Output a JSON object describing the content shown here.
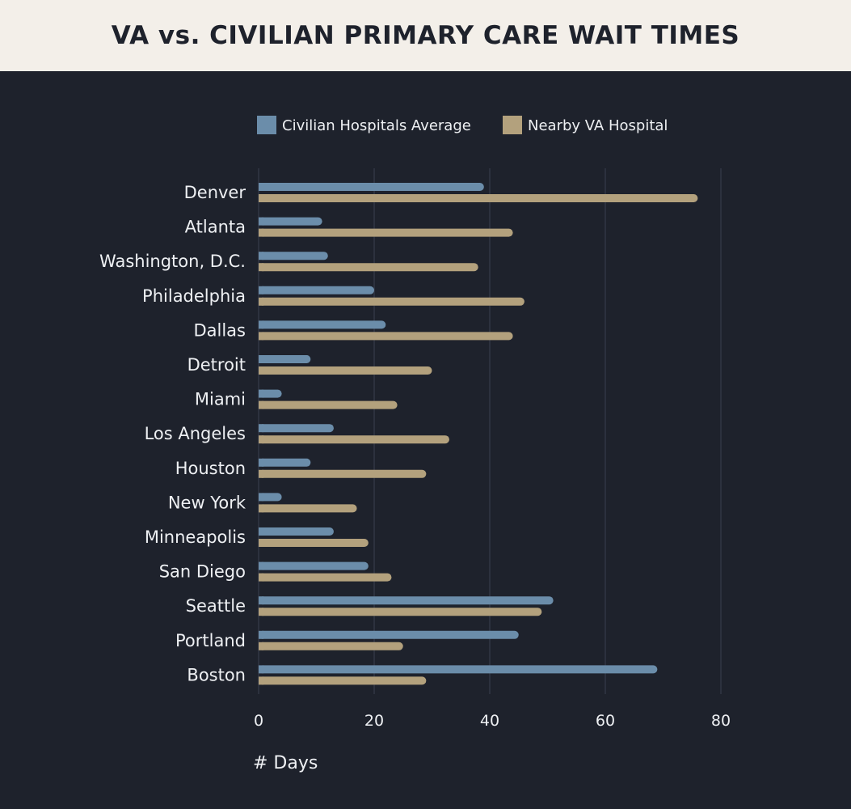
{
  "title": "VA vs. CIVILIAN PRIMARY CARE WAIT TIMES",
  "colors": {
    "background": "#1e222c",
    "header": "#f3efe9",
    "civilian": "#6b8daa",
    "va": "#b3a17d",
    "text": "#eef0f3",
    "grid": "#394050"
  },
  "chart_data": {
    "type": "bar",
    "orientation": "horizontal",
    "title": "VA vs. CIVILIAN PRIMARY CARE WAIT TIMES",
    "xlabel": "# Days",
    "ylabel": "",
    "xlim": [
      0,
      80
    ],
    "xticks": [
      0,
      20,
      40,
      60,
      80
    ],
    "grid": true,
    "legend_position": "top",
    "categories": [
      "Denver",
      "Atlanta",
      "Washington, D.C.",
      "Philadelphia",
      "Dallas",
      "Detroit",
      "Miami",
      "Los Angeles",
      "Houston",
      "New York",
      "Minneapolis",
      "San Diego",
      "Seattle",
      "Portland",
      "Boston"
    ],
    "series": [
      {
        "name": "Civilian Hospitals Average",
        "color": "#6b8daa",
        "values": [
          39,
          11,
          12,
          20,
          22,
          9,
          4,
          13,
          9,
          4,
          13,
          19,
          51,
          45,
          69
        ]
      },
      {
        "name": "Nearby VA Hospital",
        "color": "#b3a17d",
        "values": [
          76,
          44,
          38,
          46,
          44,
          30,
          24,
          33,
          29,
          17,
          19,
          23,
          49,
          25,
          29
        ]
      }
    ]
  }
}
